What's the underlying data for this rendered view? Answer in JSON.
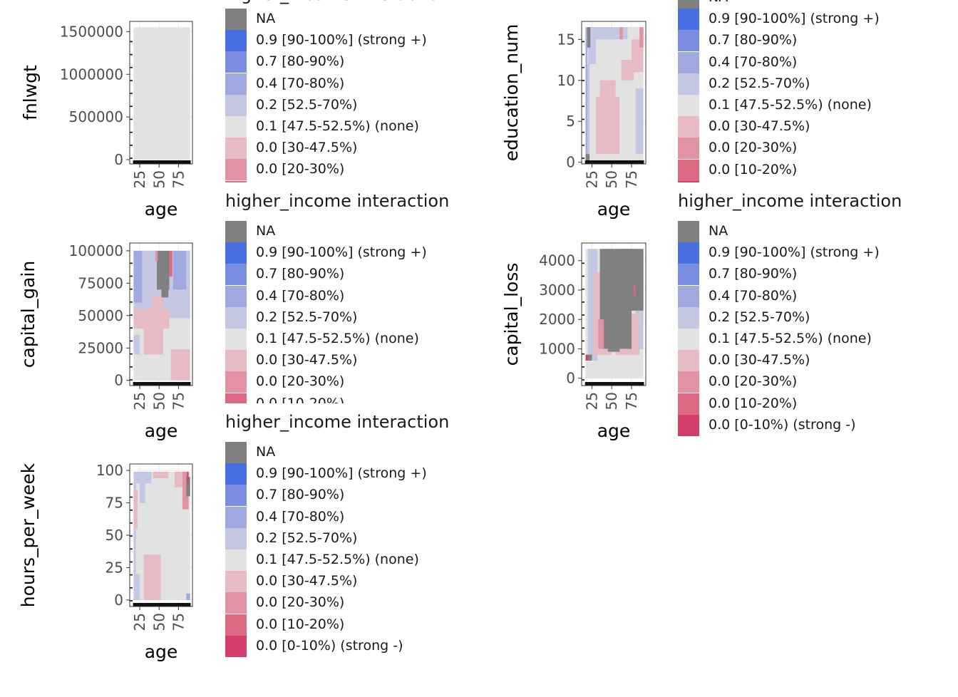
{
  "legend_title": "higher_income interaction",
  "legend_entries": [
    {
      "key": "na",
      "label": "NA",
      "color": "#808080"
    },
    {
      "key": "b4",
      "label": "0.9 [90-100%] (strong +)",
      "color": "#4a6fe3"
    },
    {
      "key": "b3",
      "label": "0.7 [80-90%)",
      "color": "#7b8de0"
    },
    {
      "key": "b2",
      "label": "0.4 [70-80%)",
      "color": "#a0a8e0"
    },
    {
      "key": "b1",
      "label": "0.2 [52.5-70%)",
      "color": "#c4c7e2"
    },
    {
      "key": "n0",
      "label": "0.1 [47.5-52.5%) (none)",
      "color": "#e2e2e2"
    },
    {
      "key": "r1",
      "label": "0.0 [30-47.5%)",
      "color": "#e6bbc4"
    },
    {
      "key": "r2",
      "label": "0.0 [20-30%)",
      "color": "#e392a3"
    },
    {
      "key": "r3",
      "label": "0.0 [10-20%)",
      "color": "#de6983"
    },
    {
      "key": "r4",
      "label": "0.0 [0-10%) (strong -)",
      "color": "#d33f6a"
    }
  ],
  "chart_data": [
    {
      "type": "heatmap",
      "name": "fnlwgt",
      "title": "higher_income interaction",
      "xlabel": "age",
      "ylabel": "fnlwgt",
      "xlim": [
        12,
        93
      ],
      "ylim": [
        -50000,
        1620000
      ],
      "xticks": [
        25,
        50,
        75
      ],
      "yticks": [
        {
          "value": 0,
          "label": "0"
        },
        {
          "value": 500000,
          "label": "500000"
        },
        {
          "value": 1000000,
          "label": "1000000"
        },
        {
          "value": 1500000,
          "label": "1500000"
        }
      ],
      "tiles": [
        [
          17,
          90,
          0,
          1550000,
          "n0"
        ]
      ]
    },
    {
      "type": "heatmap",
      "name": "education_num",
      "title": "higher_income interaction",
      "xlabel": "age",
      "ylabel": "education_num",
      "xlim": [
        12,
        93
      ],
      "ylim": [
        -0.2,
        17.2
      ],
      "xticks": [
        25,
        50,
        75
      ],
      "yticks": [
        {
          "value": 0,
          "label": "0"
        },
        {
          "value": 5,
          "label": "5"
        },
        {
          "value": 10,
          "label": "10"
        },
        {
          "value": 15,
          "label": "15"
        }
      ],
      "tiles": [
        [
          17,
          90,
          0,
          16.5,
          "n0"
        ],
        [
          17,
          22,
          1,
          12,
          "b1"
        ],
        [
          80,
          90,
          1,
          9,
          "b1"
        ],
        [
          30,
          60,
          1,
          8,
          "r1"
        ],
        [
          35,
          55,
          8,
          10,
          "r1"
        ],
        [
          62,
          78,
          10,
          12.5,
          "r1"
        ],
        [
          75,
          90,
          11,
          15,
          "r1"
        ],
        [
          28,
          70,
          15,
          16.5,
          "b1"
        ],
        [
          20,
          30,
          12,
          16.5,
          "b1"
        ],
        [
          17,
          19,
          0,
          16.5,
          "b2"
        ],
        [
          19,
          23,
          14,
          16.5,
          "na"
        ],
        [
          17,
          22,
          0,
          1,
          "na"
        ],
        [
          85,
          90,
          14,
          16.5,
          "r2"
        ],
        [
          60,
          64,
          15,
          16.5,
          "r2"
        ]
      ]
    },
    {
      "type": "heatmap",
      "name": "capital_gain",
      "title": "higher_income interaction",
      "xlabel": "age",
      "ylabel": "capital_gain",
      "xlim": [
        12,
        93
      ],
      "ylim": [
        -4000,
        106000
      ],
      "xticks": [
        25,
        50,
        75
      ],
      "yticks": [
        {
          "value": 0,
          "label": "0"
        },
        {
          "value": 25000,
          "label": "25000"
        },
        {
          "value": 50000,
          "label": "50000"
        },
        {
          "value": 75000,
          "label": "75000"
        },
        {
          "value": 100000,
          "label": "100000"
        }
      ],
      "tiles": [
        [
          17,
          90,
          0,
          100000,
          "n0"
        ],
        [
          17,
          63,
          50000,
          100000,
          "b1"
        ],
        [
          63,
          90,
          48000,
          100000,
          "b1"
        ],
        [
          17,
          28,
          60000,
          100000,
          "b2"
        ],
        [
          68,
          85,
          70000,
          100000,
          "b2"
        ],
        [
          17,
          63,
          40000,
          55000,
          "r1"
        ],
        [
          30,
          55,
          20000,
          40000,
          "r1"
        ],
        [
          40,
          55,
          55000,
          65000,
          "r1"
        ],
        [
          65,
          90,
          0,
          24000,
          "r1"
        ],
        [
          17,
          25,
          20000,
          35000,
          "b1"
        ],
        [
          47,
          63,
          70000,
          100000,
          "na"
        ],
        [
          53,
          62,
          64000,
          70000,
          "na"
        ],
        [
          63,
          67,
          80000,
          100000,
          "r3"
        ],
        [
          45,
          48,
          92000,
          100000,
          "r2"
        ]
      ]
    },
    {
      "type": "heatmap",
      "name": "capital_loss",
      "title": "higher_income interaction",
      "xlabel": "age",
      "ylabel": "capital_loss",
      "xlim": [
        12,
        93
      ],
      "ylim": [
        -250,
        4600
      ],
      "xticks": [
        25,
        50,
        75
      ],
      "yticks": [
        {
          "value": 0,
          "label": "0"
        },
        {
          "value": 1000,
          "label": "1000"
        },
        {
          "value": 2000,
          "label": "2000"
        },
        {
          "value": 3000,
          "label": "3000"
        },
        {
          "value": 4000,
          "label": "4000"
        }
      ],
      "tiles": [
        [
          17,
          90,
          0,
          4400,
          "n0"
        ],
        [
          20,
          32,
          600,
          4400,
          "b1"
        ],
        [
          80,
          90,
          1000,
          4400,
          "b1"
        ],
        [
          27,
          50,
          800,
          3600,
          "r1"
        ],
        [
          55,
          85,
          800,
          2200,
          "r1"
        ],
        [
          35,
          75,
          1000,
          4400,
          "na"
        ],
        [
          62,
          90,
          2300,
          4400,
          "na"
        ],
        [
          45,
          60,
          900,
          1200,
          "na"
        ],
        [
          33,
          40,
          1000,
          2000,
          "r2"
        ],
        [
          17,
          25,
          600,
          800,
          "na"
        ],
        [
          17,
          20,
          600,
          800,
          "r4"
        ],
        [
          78,
          80,
          2800,
          3200,
          "r3"
        ]
      ]
    },
    {
      "type": "heatmap",
      "name": "hours_per_week",
      "title": "higher_income interaction",
      "xlabel": "age",
      "ylabel": "hours_per_week",
      "xlim": [
        12,
        93
      ],
      "ylim": [
        -5,
        105
      ],
      "xticks": [
        25,
        50,
        75
      ],
      "yticks": [
        {
          "value": 0,
          "label": "0"
        },
        {
          "value": 25,
          "label": "25"
        },
        {
          "value": 50,
          "label": "50"
        },
        {
          "value": 75,
          "label": "75"
        },
        {
          "value": 100,
          "label": "100"
        }
      ],
      "tiles": [
        [
          17,
          90,
          0,
          99,
          "n0"
        ],
        [
          17,
          20,
          0,
          99,
          "b1"
        ],
        [
          20,
          25,
          0,
          20,
          "b1"
        ],
        [
          20,
          40,
          90,
          99,
          "b1"
        ],
        [
          42,
          62,
          94,
          99,
          "r1"
        ],
        [
          17,
          22,
          55,
          85,
          "r1"
        ],
        [
          30,
          52,
          0,
          35,
          "r1"
        ],
        [
          70,
          80,
          87,
          99,
          "r1"
        ],
        [
          80,
          88,
          70,
          99,
          "r2"
        ],
        [
          85,
          90,
          80,
          95,
          "na"
        ],
        [
          86,
          88,
          90,
          99,
          "r4"
        ],
        [
          25,
          32,
          75,
          90,
          "b1"
        ],
        [
          85,
          90,
          0,
          5,
          "b2"
        ]
      ]
    }
  ]
}
